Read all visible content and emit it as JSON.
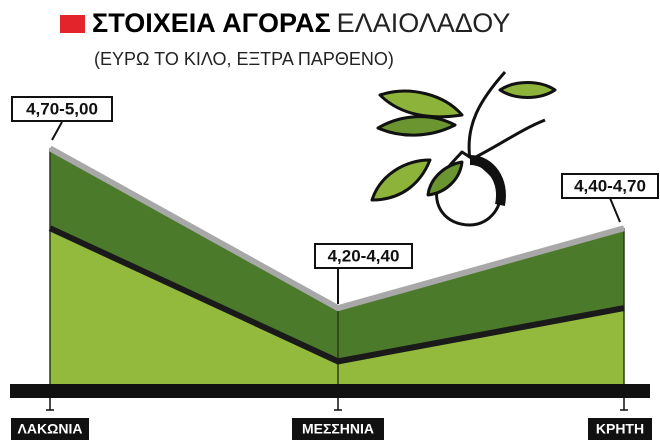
{
  "chart_data": {
    "type": "range-area",
    "title": "ΣΤΟΙΧΕΙΑ ΑΓΟΡΑΣ",
    "title_suffix": "ΕΛΑΙΟΛΑΔΟΥ",
    "subtitle": "(ΕΥΡΩ ΤΟ ΚΙΛΟ, ΕΞΤΡΑ ΠΑΡΘΕΝΟ)",
    "categories": [
      "ΛΑΚΩΝΙΑ",
      "ΜΕΣΣΗΝΙΑ",
      "ΚΡΗΤΗ"
    ],
    "low": [
      4.7,
      4.2,
      4.4
    ],
    "high": [
      5.0,
      4.4,
      4.7
    ],
    "value_labels": [
      "4,70-5,00",
      "4,20-4,40",
      "4,40-4,70"
    ],
    "ylim": [
      4.1,
      5.05
    ],
    "colors": {
      "band": "#4c7a2b",
      "below": "#93ba3c",
      "low_line": "#1a1a1a",
      "high_line": "#a8a8a8",
      "accent": "#e3242b"
    }
  }
}
